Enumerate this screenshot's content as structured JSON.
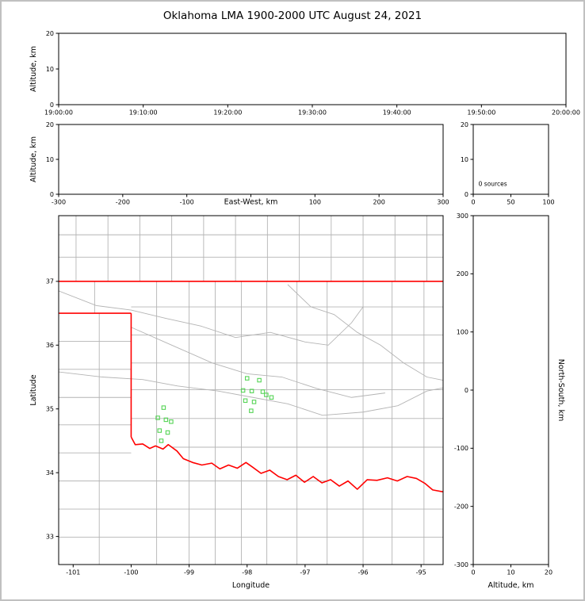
{
  "title": "Oklahoma LMA 1900-2000 UTC August 24, 2021",
  "colors": {
    "background": "#ffffff",
    "frame_border": "#c0c0c0",
    "axis": "#000000",
    "county_line": "#b4b4b4",
    "state_border": "#ff0000",
    "marker_stroke": "#55d455"
  },
  "chart_data": [
    {
      "name": "time-height",
      "type": "scatter",
      "xlim": [
        0,
        60
      ],
      "ylim": [
        0,
        20
      ],
      "xticks": [
        {
          "v": 0,
          "label": "19:00:00"
        },
        {
          "v": 10,
          "label": "19:10:00"
        },
        {
          "v": 20,
          "label": "19:20:00"
        },
        {
          "v": 30,
          "label": "19:30:00"
        },
        {
          "v": 40,
          "label": "19:40:00"
        },
        {
          "v": 50,
          "label": "19:50:00"
        },
        {
          "v": 60,
          "label": "20:00:00"
        }
      ],
      "yticks": [
        {
          "v": 0,
          "label": "0"
        },
        {
          "v": 10,
          "label": "10"
        },
        {
          "v": 20,
          "label": "20"
        }
      ],
      "ylabel": "Altitude, km",
      "points": []
    },
    {
      "name": "ew-height",
      "type": "scatter",
      "xlim": [
        -300,
        300
      ],
      "ylim": [
        0,
        20
      ],
      "xticks": [
        {
          "v": -300,
          "label": "-300"
        },
        {
          "v": -200,
          "label": "-200"
        },
        {
          "v": -100,
          "label": "-100"
        },
        {
          "v": 0,
          "label": ""
        },
        {
          "v": 100,
          "label": "100"
        },
        {
          "v": 200,
          "label": "200"
        },
        {
          "v": 300,
          "label": "300"
        }
      ],
      "yticks": [
        {
          "v": 0,
          "label": "0"
        },
        {
          "v": 10,
          "label": "10"
        },
        {
          "v": 20,
          "label": "20"
        }
      ],
      "xlabel": "East-West, km",
      "xlabel_inline": true,
      "ylabel": "Altitude, km",
      "points": []
    },
    {
      "name": "alt-histogram",
      "type": "scatter",
      "xlim": [
        0,
        100
      ],
      "ylim": [
        0,
        20
      ],
      "xticks": [
        {
          "v": 0,
          "label": "0"
        },
        {
          "v": 50,
          "label": "50"
        },
        {
          "v": 100,
          "label": "100"
        }
      ],
      "yticks": [
        {
          "v": 0,
          "label": "0"
        },
        {
          "v": 10,
          "label": "10"
        },
        {
          "v": 20,
          "label": "20"
        }
      ],
      "annotation": {
        "text": "0 sources",
        "fx": 0.07,
        "fy": 0.88
      },
      "points": []
    },
    {
      "name": "plan-view",
      "type": "scatter",
      "xlim": [
        -101.25,
        -94.62
      ],
      "ylim": [
        32.56,
        38.03
      ],
      "xticks": [
        {
          "v": -101,
          "label": "-101"
        },
        {
          "v": -100,
          "label": "-100"
        },
        {
          "v": -99,
          "label": "-99"
        },
        {
          "v": -98,
          "label": "-98"
        },
        {
          "v": -97,
          "label": "-97"
        },
        {
          "v": -96,
          "label": "-96"
        },
        {
          "v": -95,
          "label": "-95"
        }
      ],
      "yticks": [
        {
          "v": 33,
          "label": "33"
        },
        {
          "v": 34,
          "label": "34"
        },
        {
          "v": 35,
          "label": "35"
        },
        {
          "v": 36,
          "label": "36"
        },
        {
          "v": 37,
          "label": "37"
        }
      ],
      "xlabel": "Longitude",
      "ylabel": "Latitude",
      "marker": {
        "shape": "square",
        "size": 4.4
      },
      "points": [
        [
          -98.0,
          35.48
        ],
        [
          -97.79,
          35.45
        ],
        [
          -98.07,
          35.29
        ],
        [
          -97.92,
          35.28
        ],
        [
          -97.73,
          35.27
        ],
        [
          -98.03,
          35.13
        ],
        [
          -97.88,
          35.11
        ],
        [
          -97.67,
          35.22
        ],
        [
          -97.58,
          35.18
        ],
        [
          -97.93,
          34.97
        ],
        [
          -99.44,
          35.02
        ],
        [
          -99.54,
          34.86
        ],
        [
          -99.4,
          34.83
        ],
        [
          -99.31,
          34.8
        ],
        [
          -99.51,
          34.66
        ],
        [
          -99.37,
          34.63
        ],
        [
          -99.48,
          34.5
        ]
      ],
      "gray_segments": [
        [
          -100.95,
          37.0,
          -100.95,
          38.03
        ],
        [
          -100.4,
          37.0,
          -100.4,
          38.03
        ],
        [
          -99.85,
          37.0,
          -99.85,
          38.03
        ],
        [
          -99.3,
          37.0,
          -99.3,
          38.03
        ],
        [
          -98.75,
          37.0,
          -98.75,
          38.03
        ],
        [
          -98.2,
          37.0,
          -98.2,
          38.03
        ],
        [
          -97.65,
          37.0,
          -97.65,
          38.03
        ],
        [
          -97.1,
          37.0,
          -97.1,
          38.03
        ],
        [
          -96.55,
          37.0,
          -96.55,
          38.03
        ],
        [
          -95.45,
          37.0,
          -95.45,
          38.03
        ],
        [
          -94.9,
          37.0,
          -94.9,
          38.03
        ],
        [
          -101.25,
          37.38,
          -94.62,
          37.38
        ],
        [
          -101.25,
          37.73,
          -94.62,
          37.73
        ],
        [
          -100.63,
          37.0,
          -100.63,
          36.5
        ],
        [
          -100.55,
          36.5,
          -100.55,
          32.56
        ],
        [
          -101.25,
          36.06,
          -100.0,
          36.06
        ],
        [
          -101.25,
          35.62,
          -100.0,
          35.62
        ],
        [
          -101.25,
          35.18,
          -100.0,
          35.18
        ],
        [
          -101.25,
          34.75,
          -100.0,
          34.75
        ],
        [
          -101.25,
          34.31,
          -100.0,
          34.31
        ],
        [
          -101.25,
          33.87,
          -96.6,
          33.87
        ],
        [
          -101.25,
          33.43,
          -94.62,
          33.43
        ],
        [
          -101.25,
          32.99,
          -94.62,
          32.99
        ],
        [
          -99.56,
          37.0,
          -99.56,
          32.56
        ],
        [
          -99.0,
          37.0,
          -99.0,
          32.56
        ],
        [
          -98.55,
          37.0,
          -98.55,
          32.56
        ],
        [
          -98.1,
          37.0,
          -98.1,
          32.56
        ],
        [
          -97.66,
          37.0,
          -97.66,
          32.56
        ],
        [
          -97.14,
          37.0,
          -97.14,
          32.56
        ],
        [
          -96.62,
          37.0,
          -96.62,
          32.56
        ],
        [
          -96.0,
          38.03,
          -96.0,
          32.56
        ],
        [
          -95.5,
          37.0,
          -95.5,
          32.56
        ],
        [
          -94.95,
          37.0,
          -94.95,
          32.56
        ],
        [
          -100.0,
          36.6,
          -94.62,
          36.6
        ],
        [
          -100.0,
          36.16,
          -94.62,
          36.16
        ],
        [
          -100.0,
          35.72,
          -94.62,
          35.72
        ],
        [
          -100.0,
          35.3,
          -94.62,
          35.3
        ],
        [
          -100.0,
          34.85,
          -94.62,
          34.85
        ],
        [
          -99.3,
          34.4,
          -94.62,
          34.4
        ]
      ],
      "gray_polylines": [
        [
          [
            -101.25,
            36.85
          ],
          [
            -100.6,
            36.62
          ],
          [
            -100.0,
            36.55
          ],
          [
            -99.4,
            36.42
          ],
          [
            -98.8,
            36.3
          ],
          [
            -98.2,
            36.12
          ],
          [
            -97.6,
            36.2
          ],
          [
            -97.0,
            36.05
          ],
          [
            -96.6,
            36.0
          ],
          [
            -96.2,
            36.35
          ],
          [
            -96.0,
            36.6
          ]
        ],
        [
          [
            -101.25,
            35.58
          ],
          [
            -100.5,
            35.5
          ],
          [
            -99.8,
            35.46
          ],
          [
            -99.2,
            35.36
          ],
          [
            -98.5,
            35.28
          ],
          [
            -97.9,
            35.18
          ],
          [
            -97.3,
            35.08
          ],
          [
            -96.7,
            34.9
          ],
          [
            -96.0,
            34.95
          ],
          [
            -95.4,
            35.05
          ],
          [
            -94.9,
            35.28
          ],
          [
            -94.62,
            35.33
          ]
        ],
        [
          [
            -100.0,
            36.28
          ],
          [
            -99.3,
            36.0
          ],
          [
            -98.6,
            35.72
          ],
          [
            -98.0,
            35.55
          ],
          [
            -97.4,
            35.5
          ],
          [
            -96.8,
            35.32
          ],
          [
            -96.2,
            35.18
          ],
          [
            -95.62,
            35.25
          ]
        ],
        [
          [
            -97.3,
            36.95
          ],
          [
            -96.9,
            36.6
          ],
          [
            -96.5,
            36.48
          ],
          [
            -96.1,
            36.2
          ],
          [
            -95.7,
            36.0
          ],
          [
            -95.3,
            35.72
          ],
          [
            -94.9,
            35.5
          ],
          [
            -94.62,
            35.45
          ]
        ]
      ],
      "red_polylines": [
        [
          [
            -101.25,
            37.0
          ],
          [
            -94.62,
            37.0
          ]
        ],
        [
          [
            -101.25,
            36.5
          ],
          [
            -100.0,
            36.5
          ]
        ],
        [
          [
            -100.0,
            36.5
          ],
          [
            -100.0,
            34.56
          ]
        ],
        [
          [
            -100.0,
            34.56
          ],
          [
            -99.93,
            34.44
          ],
          [
            -99.8,
            34.45
          ],
          [
            -99.68,
            34.38
          ],
          [
            -99.58,
            34.42
          ],
          [
            -99.45,
            34.37
          ],
          [
            -99.36,
            34.44
          ],
          [
            -99.21,
            34.34
          ],
          [
            -99.1,
            34.22
          ],
          [
            -98.94,
            34.16
          ],
          [
            -98.78,
            34.12
          ],
          [
            -98.61,
            34.15
          ],
          [
            -98.47,
            34.06
          ],
          [
            -98.32,
            34.12
          ],
          [
            -98.17,
            34.07
          ],
          [
            -98.02,
            34.16
          ],
          [
            -97.91,
            34.09
          ],
          [
            -97.76,
            33.99
          ],
          [
            -97.61,
            34.04
          ],
          [
            -97.46,
            33.94
          ],
          [
            -97.31,
            33.89
          ],
          [
            -97.16,
            33.96
          ],
          [
            -97.01,
            33.85
          ],
          [
            -96.86,
            33.94
          ],
          [
            -96.71,
            33.84
          ],
          [
            -96.56,
            33.89
          ],
          [
            -96.41,
            33.79
          ],
          [
            -96.26,
            33.87
          ],
          [
            -96.1,
            33.74
          ],
          [
            -95.93,
            33.89
          ],
          [
            -95.76,
            33.88
          ],
          [
            -95.58,
            33.92
          ],
          [
            -95.41,
            33.87
          ],
          [
            -95.24,
            33.94
          ],
          [
            -95.08,
            33.91
          ],
          [
            -94.93,
            33.83
          ],
          [
            -94.8,
            33.73
          ],
          [
            -94.62,
            33.7
          ]
        ]
      ]
    },
    {
      "name": "height-ns",
      "type": "scatter",
      "xlim": [
        0,
        20
      ],
      "ylim": [
        -300,
        300
      ],
      "xticks": [
        {
          "v": 0,
          "label": "0"
        },
        {
          "v": 10,
          "label": "10"
        },
        {
          "v": 20,
          "label": "20"
        }
      ],
      "yticks": [
        {
          "v": 300,
          "label": "300"
        },
        {
          "v": 200,
          "label": "200"
        },
        {
          "v": 100,
          "label": "100"
        },
        {
          "v": 0,
          "label": "0"
        },
        {
          "v": -100,
          "label": "-100"
        },
        {
          "v": -200,
          "label": "-200"
        },
        {
          "v": -300,
          "label": "-300"
        }
      ],
      "xlabel": "Altitude, km",
      "ylabel_right": "North-South, km",
      "points": []
    }
  ]
}
